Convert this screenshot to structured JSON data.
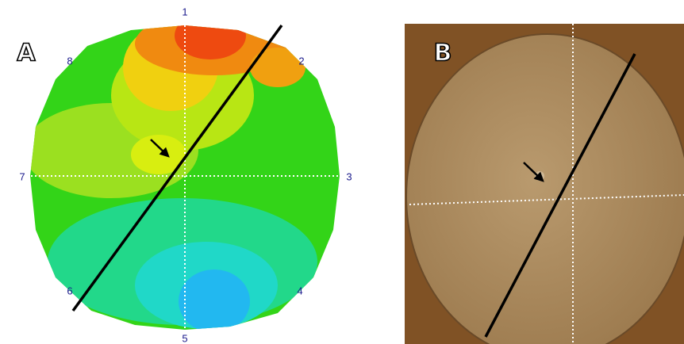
{
  "panels": [
    {
      "label": "A",
      "sensors": [
        "1",
        "2",
        "3",
        "4",
        "5",
        "6",
        "7",
        "8"
      ]
    },
    {
      "label": "B"
    }
  ]
}
